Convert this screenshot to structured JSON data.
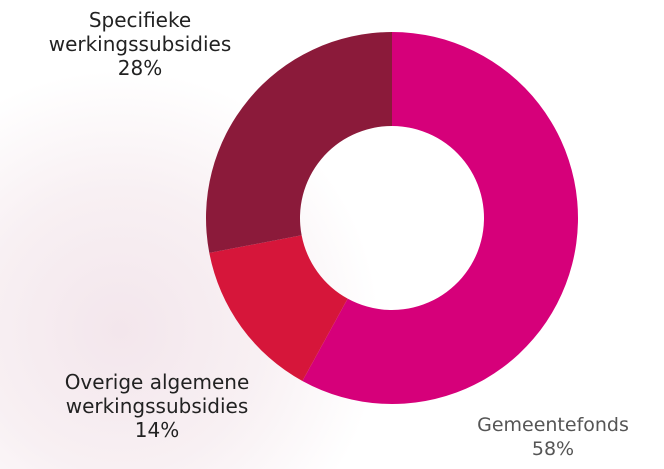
{
  "chart_data": {
    "type": "donut",
    "categories": [
      "Gemeentefonds",
      "Overige algemene werkingssubsidies",
      "Specifieke werkingssubsidies"
    ],
    "values": [
      58,
      14,
      28
    ],
    "value_labels": [
      "58%",
      "14%",
      "28%"
    ],
    "colors": [
      "#d6007a",
      "#d6163a",
      "#8b1a3a"
    ]
  }
}
